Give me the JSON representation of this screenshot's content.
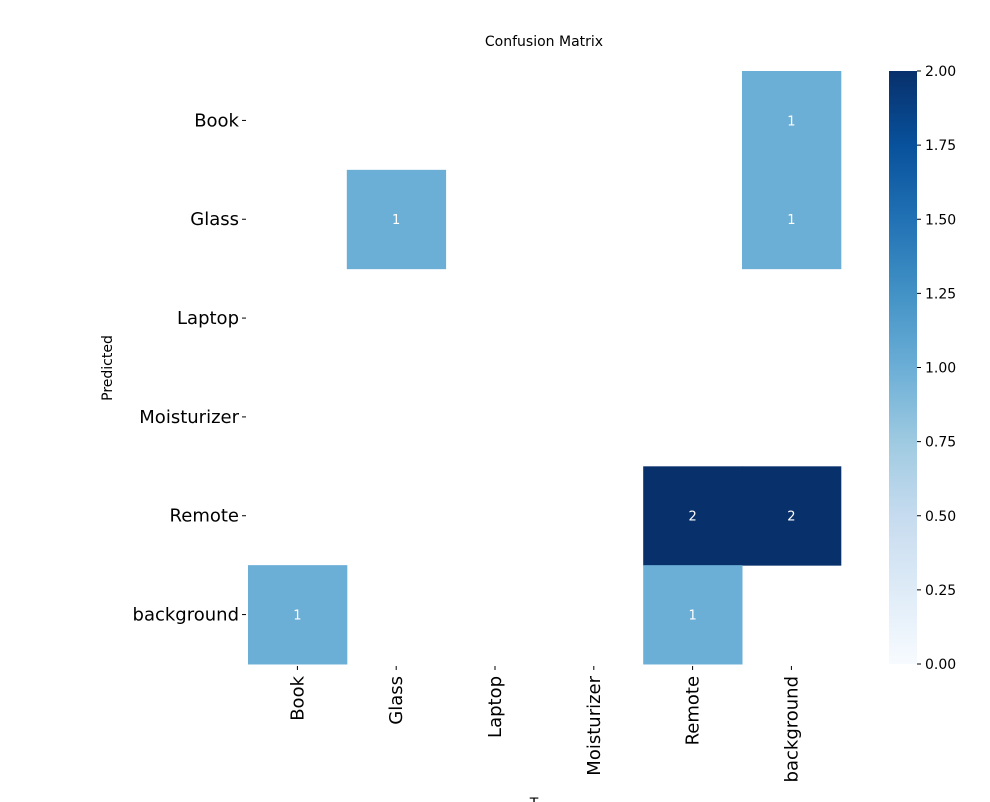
{
  "chart_data": {
    "type": "heatmap",
    "title": "Confusion Matrix",
    "ylabel": "Predicted",
    "xlabel": "T",
    "rows": [
      "Book",
      "Glass",
      "Laptop",
      "Moisturizer",
      "Remote",
      "background"
    ],
    "columns": [
      "Book",
      "Glass",
      "Laptop",
      "Moisturizer",
      "Remote",
      "background"
    ],
    "values": [
      [
        0,
        0,
        0,
        0,
        0,
        1
      ],
      [
        0,
        1,
        0,
        0,
        0,
        1
      ],
      [
        0,
        0,
        0,
        0,
        0,
        0
      ],
      [
        0,
        0,
        0,
        0,
        0,
        0
      ],
      [
        0,
        0,
        0,
        0,
        2,
        2
      ],
      [
        1,
        0,
        0,
        0,
        1,
        0
      ]
    ],
    "colorbar": {
      "min": 0,
      "max": 2,
      "ticks": [
        "0.00",
        "0.25",
        "0.50",
        "0.75",
        "1.00",
        "1.25",
        "1.50",
        "1.75",
        "2.00"
      ]
    },
    "colormap": "Blues",
    "hide_zero_cells": true
  }
}
